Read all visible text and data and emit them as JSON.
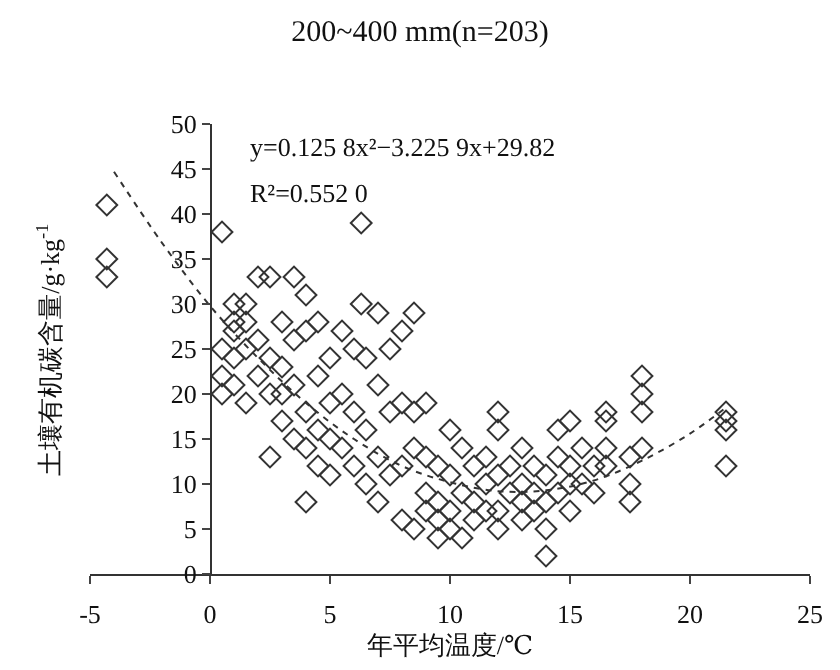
{
  "chart_data": {
    "type": "scatter",
    "title": "200~400 mm(n=203)",
    "xlabel": "年平均温度/℃",
    "ylabel": "土壤有机碳含量/g·kg$^{-1}$",
    "annotations": [
      "y=0.125 8x²−3.225 9x+29.82",
      "R²=0.552 0"
    ],
    "xlim": [
      -5,
      25
    ],
    "xticks": [
      -5,
      0,
      5,
      10,
      15,
      20,
      25
    ],
    "ylim": [
      0,
      50
    ],
    "yticks": [
      0,
      5,
      10,
      15,
      20,
      25,
      30,
      35,
      40,
      45,
      50
    ],
    "grid": false,
    "series": [
      {
        "color": "#333333",
        "marker": "diamond",
        "x": [
          -4.3,
          -4.3,
          -4.3,
          0.5,
          0.5,
          0.5,
          0.5,
          1,
          1,
          1,
          1,
          1,
          1.5,
          1.5,
          1.5,
          1.5,
          2,
          2,
          2,
          2.5,
          2.5,
          2.5,
          2.5,
          3,
          3,
          3,
          3,
          3.5,
          3.5,
          3.5,
          3.5,
          4,
          4,
          4,
          4,
          4,
          4.5,
          4.5,
          4.5,
          4.5,
          5,
          5,
          5,
          5,
          5.5,
          5.5,
          5.5,
          6,
          6,
          6,
          6.3,
          6.3,
          6.5,
          6.5,
          6.5,
          7,
          7,
          7,
          7,
          7.5,
          7.5,
          7.5,
          8,
          8,
          8,
          8,
          8.5,
          8.5,
          8.5,
          8.5,
          9,
          9,
          9,
          9,
          9.5,
          9.5,
          9.5,
          9.5,
          10,
          10,
          10,
          10,
          10.5,
          10.5,
          10.5,
          11,
          11,
          11,
          11.5,
          11.5,
          11.5,
          12,
          12,
          12,
          12,
          12,
          12.5,
          12.5,
          13,
          13,
          13,
          13,
          13.5,
          13.5,
          13.5,
          14,
          14,
          14,
          14,
          14.5,
          14.5,
          14.5,
          15,
          15,
          15,
          15,
          15.5,
          15.5,
          16,
          16,
          16.5,
          16.5,
          16.5,
          16.5,
          17.5,
          17.5,
          17.5,
          18,
          18,
          18,
          18,
          21.5,
          21.5,
          21.5,
          21.5
        ],
        "values": [
          41,
          35,
          33,
          38,
          25,
          20,
          22,
          30,
          28,
          27,
          24,
          21,
          30,
          25,
          19,
          28,
          22,
          26,
          33,
          33,
          24,
          20,
          13,
          28,
          20,
          17,
          23,
          33,
          26,
          21,
          15,
          31,
          27,
          18,
          14,
          8,
          28,
          22,
          16,
          12,
          24,
          19,
          15,
          11,
          27,
          20,
          14,
          25,
          18,
          12,
          39,
          30,
          24,
          16,
          10,
          29,
          21,
          13,
          8,
          25,
          18,
          11,
          27,
          19,
          12,
          6,
          29,
          18,
          14,
          5,
          19,
          13,
          9,
          7,
          12,
          8,
          4,
          6,
          16,
          11,
          7,
          5,
          14,
          9,
          4,
          12,
          8,
          6,
          13,
          10,
          7,
          18,
          16,
          11,
          7,
          5,
          12,
          9,
          14,
          10,
          8,
          6,
          12,
          9,
          7,
          11,
          8,
          2,
          5,
          16,
          13,
          9,
          17,
          12,
          10,
          7,
          14,
          10,
          12,
          9,
          18,
          17,
          14,
          12,
          13,
          10,
          8,
          22,
          20,
          18,
          14,
          18,
          17,
          16,
          12
        ]
      },
      {
        "type": "line",
        "color": "#333333",
        "marker": "none",
        "line_style": "dotted",
        "x": [
          -4,
          -2,
          0,
          2,
          4,
          6,
          8,
          10,
          12,
          14,
          16,
          18,
          20,
          21.5
        ],
        "values": [
          44.7,
          36.8,
          29.8,
          24.0,
          19.0,
          15.0,
          12.0,
          10.2,
          9.2,
          9.3,
          10.4,
          12.6,
          15.6,
          18.5
        ]
      }
    ]
  }
}
